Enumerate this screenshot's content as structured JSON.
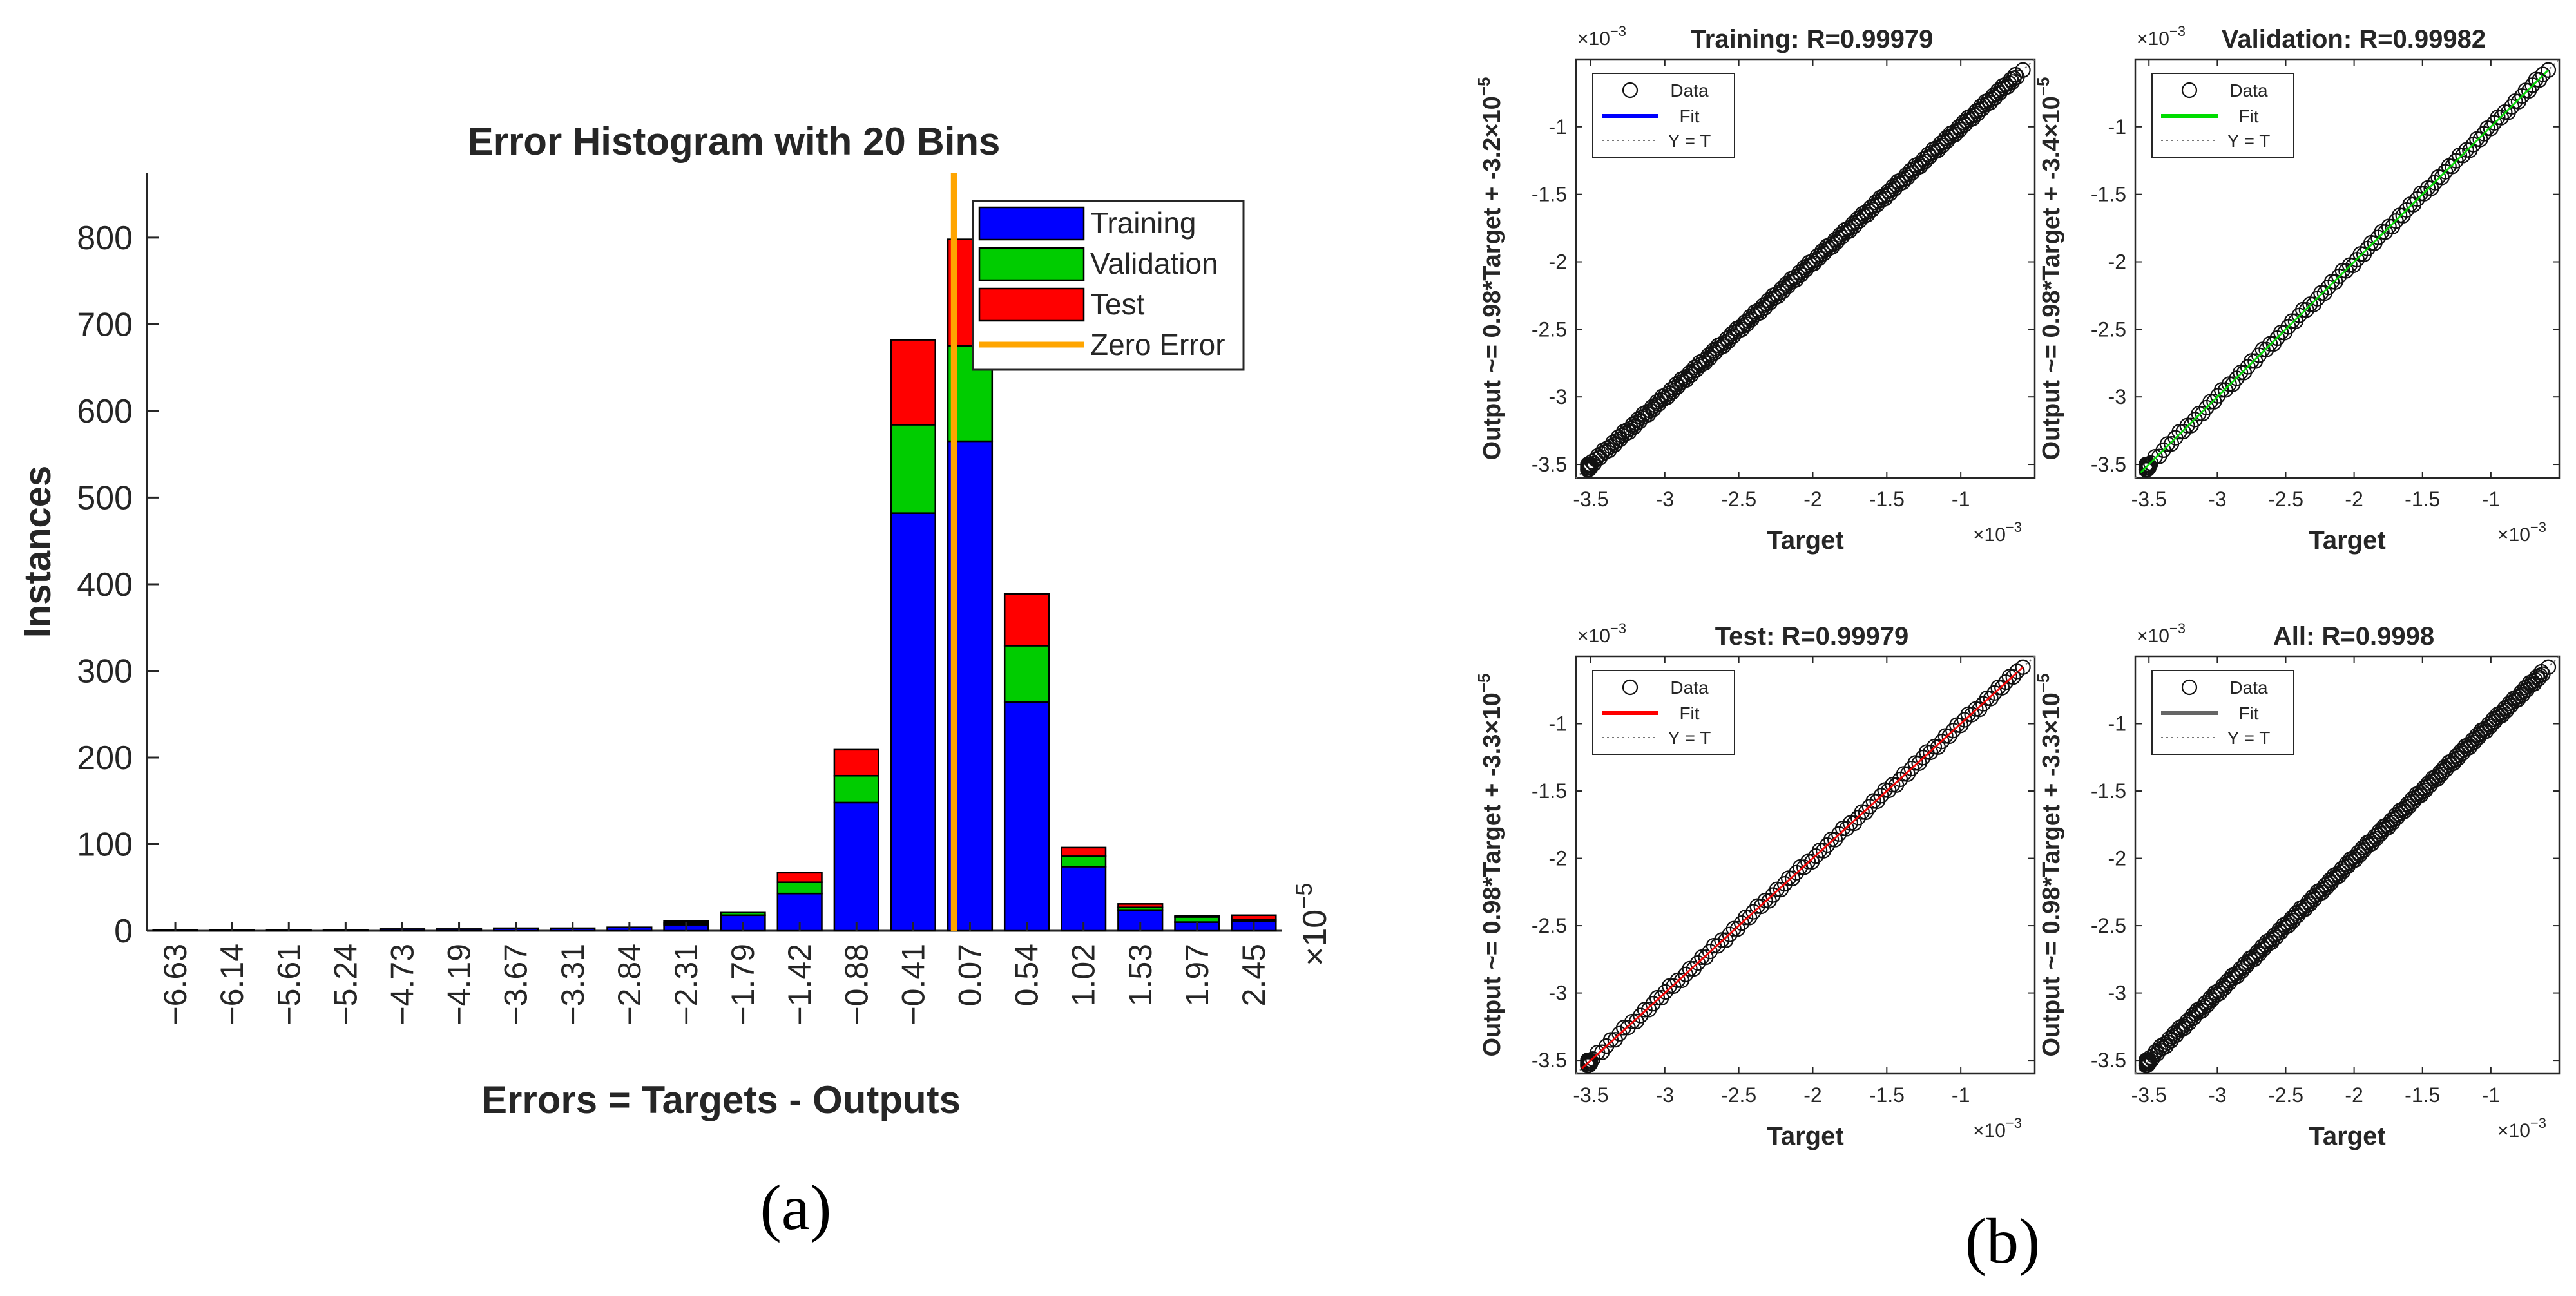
{
  "panel_labels": {
    "a": "(a)",
    "b": "(b)"
  },
  "exponent_base": "×10",
  "chart_data": [
    {
      "type": "bar",
      "stacked": true,
      "title": "Error Histogram with 20 Bins",
      "xlabel": "Errors = Targets - Outputs",
      "ylabel": "Instances",
      "x_exponent": "−5",
      "ylim": [
        0,
        875
      ],
      "yticks": [
        "0",
        "100",
        "200",
        "300",
        "400",
        "500",
        "600",
        "700",
        "800"
      ],
      "yticks_values": [
        0,
        100,
        200,
        300,
        400,
        500,
        600,
        700,
        800
      ],
      "categories": [
        "−6.63",
        "−6.14",
        "−5.61",
        "−5.24",
        "−4.73",
        "−4.19",
        "−3.67",
        "−3.31",
        "−2.84",
        "−2.31",
        "−1.79",
        "−1.42",
        "−0.88",
        "−0.41",
        "0.07",
        "0.54",
        "1.02",
        "1.53",
        "1.97",
        "2.45"
      ],
      "series": [
        {
          "name": "Training",
          "color": "#0000ff",
          "values": [
            1,
            1,
            1,
            1,
            2,
            2,
            3,
            3,
            4,
            7,
            18,
            43,
            148,
            482,
            565,
            264,
            74,
            24,
            10,
            11
          ]
        },
        {
          "name": "Validation",
          "color": "#00cc00",
          "values": [
            0,
            0,
            0,
            0,
            0,
            0,
            0,
            0,
            0,
            2,
            3,
            13,
            31,
            102,
            110,
            65,
            12,
            3,
            6,
            2
          ]
        },
        {
          "name": "Test",
          "color": "#ff0000",
          "values": [
            0,
            0,
            0,
            0,
            0,
            0,
            0,
            0,
            0,
            2,
            0,
            11,
            30,
            98,
            123,
            60,
            10,
            4,
            1,
            5
          ]
        }
      ],
      "zero_error": {
        "name": "Zero Error",
        "color": "#ffa500",
        "at_index": 14
      },
      "legend": {
        "position": "top-right",
        "entries": [
          "Training",
          "Validation",
          "Test",
          "Zero Error"
        ]
      }
    },
    {
      "type": "scatter",
      "title": "Training: R=0.99979",
      "ylabel": "Output ~= 0.98*Target + -3.2×10",
      "ylabel_exp": "−5",
      "xlabel": "Target",
      "fit_color": "#0000ff",
      "marker_color": "#0000ff",
      "legend": [
        "Data",
        "Fit",
        "Y = T"
      ],
      "axis_exponent": "−3",
      "xlim": [
        -3.6,
        -0.5
      ],
      "ylim": [
        -3.6,
        -0.5
      ],
      "xticks": [
        "-3.5",
        "-3",
        "-2.5",
        "-2",
        "-1.5",
        "-1"
      ],
      "yticks": [
        "-3.5",
        "-3",
        "-2.5",
        "-2",
        "-1.5",
        "-1"
      ]
    },
    {
      "type": "scatter",
      "title": "Validation: R=0.99982",
      "ylabel": "Output ~= 0.98*Target + -3.4×10",
      "ylabel_exp": "−5",
      "xlabel": "Target",
      "fit_color": "#00dd00",
      "marker_color": "#00aa00",
      "legend": [
        "Data",
        "Fit",
        "Y = T"
      ],
      "axis_exponent": "−3",
      "xlim": [
        -3.6,
        -0.5
      ],
      "ylim": [
        -3.6,
        -0.5
      ],
      "xticks": [
        "-3.5",
        "-3",
        "-2.5",
        "-2",
        "-1.5",
        "-1"
      ],
      "yticks": [
        "-3.5",
        "-3",
        "-2.5",
        "-2",
        "-1.5",
        "-1"
      ]
    },
    {
      "type": "scatter",
      "title": "Test: R=0.99979",
      "ylabel": "Output ~= 0.98*Target + -3.3×10",
      "ylabel_exp": "−5",
      "xlabel": "Target",
      "fit_color": "#ff0000",
      "marker_color": "#cc0000",
      "legend": [
        "Data",
        "Fit",
        "Y = T"
      ],
      "axis_exponent": "−3",
      "xlim": [
        -3.6,
        -0.5
      ],
      "ylim": [
        -3.6,
        -0.5
      ],
      "xticks": [
        "-3.5",
        "-3",
        "-2.5",
        "-2",
        "-1.5",
        "-1"
      ],
      "yticks": [
        "-3.5",
        "-3",
        "-2.5",
        "-2",
        "-1.5",
        "-1"
      ]
    },
    {
      "type": "scatter",
      "title": "All: R=0.9998",
      "ylabel": "Output ~= 0.98*Target + -3.3×10",
      "ylabel_exp": "−5",
      "xlabel": "Target",
      "fit_color": "#666666",
      "marker_color": "#555555",
      "legend": [
        "Data",
        "Fit",
        "Y = T"
      ],
      "axis_exponent": "−3",
      "xlim": [
        -3.6,
        -0.5
      ],
      "ylim": [
        -3.6,
        -0.5
      ],
      "xticks": [
        "-3.5",
        "-3",
        "-2.5",
        "-2",
        "-1.5",
        "-1"
      ],
      "yticks": [
        "-3.5",
        "-3",
        "-2.5",
        "-2",
        "-1.5",
        "-1"
      ]
    }
  ]
}
